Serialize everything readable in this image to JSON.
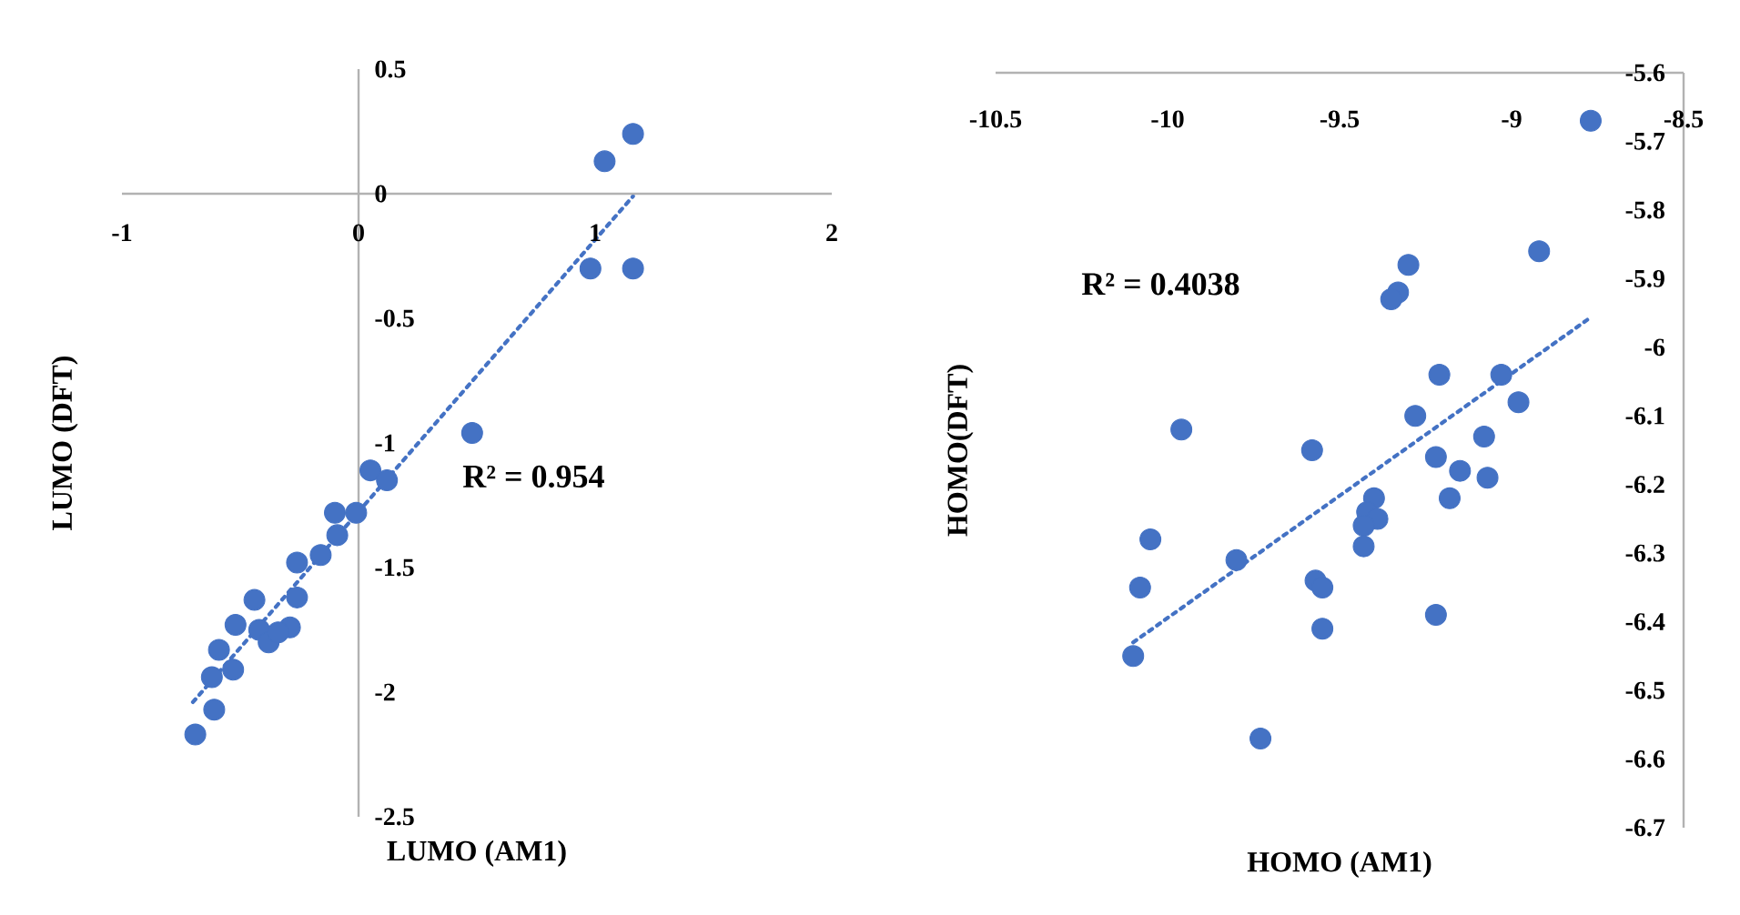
{
  "chart_data": [
    {
      "type": "scatter",
      "xlabel": "LUMO (AM1)",
      "ylabel": "LUMO (DFT)",
      "xlim": [
        -1,
        2
      ],
      "ylim": [
        -2.5,
        0.5
      ],
      "xticks": [
        -1,
        0,
        1,
        2
      ],
      "yticks": [
        -2.5,
        -2,
        -1.5,
        -1,
        -0.5,
        0,
        0.5
      ],
      "annotations": [
        "R² = 0.954"
      ],
      "series": [
        {
          "type": "scatter",
          "marker": "circle",
          "color": "#4472c4",
          "x": [
            1.16,
            1.04,
            0.98,
            1.16,
            0.48,
            0.05,
            0.12,
            -0.1,
            -0.01,
            -0.09,
            -0.16,
            -0.26,
            -0.26,
            -0.44,
            -0.52,
            -0.42,
            -0.38,
            -0.29,
            -0.34,
            -0.59,
            -0.53,
            -0.62,
            -0.61,
            -0.69
          ],
          "values": [
            0.24,
            0.13,
            -0.3,
            -0.3,
            -0.96,
            -1.11,
            -1.15,
            -1.28,
            -1.28,
            -1.37,
            -1.45,
            -1.48,
            -1.62,
            -1.63,
            -1.73,
            -1.75,
            -1.8,
            -1.74,
            -1.76,
            -1.83,
            -1.91,
            -1.94,
            -2.07,
            -2.17
          ]
        },
        {
          "type": "line",
          "marker": "none",
          "line_style": "dotted",
          "color": "#4472c4",
          "x": [
            -0.7,
            1.16
          ],
          "values": [
            -2.04,
            -0.01
          ]
        }
      ]
    },
    {
      "type": "scatter",
      "xlabel": "HOMO (AM1)",
      "ylabel": "HOMO(DFT)",
      "xlim": [
        -10.5,
        -8.5
      ],
      "ylim": [
        -6.7,
        -5.6
      ],
      "xticks": [
        -10.5,
        -10,
        -9.5,
        -9,
        -8.5
      ],
      "yticks": [
        -6.7,
        -6.6,
        -6.5,
        -6.4,
        -6.3,
        -6.2,
        -6.1,
        -6,
        -5.9,
        -5.8,
        -5.7,
        -5.6
      ],
      "annotations": [
        "R² = 0.4038"
      ],
      "series": [
        {
          "type": "scatter",
          "marker": "circle",
          "color": "#4472c4",
          "x": [
            -8.77,
            -8.92,
            -9.3,
            -9.33,
            -9.35,
            -9.21,
            -9.03,
            -8.98,
            -9.28,
            -9.96,
            -9.58,
            -9.08,
            -9.22,
            -9.15,
            -9.07,
            -9.18,
            -9.4,
            -9.42,
            -9.39,
            -9.43,
            -9.43,
            -10.05,
            -9.8,
            -10.08,
            -9.57,
            -9.55,
            -9.55,
            -9.22,
            -10.1,
            -9.73
          ],
          "values": [
            -5.67,
            -5.86,
            -5.88,
            -5.92,
            -5.93,
            -6.04,
            -6.04,
            -6.08,
            -6.1,
            -6.12,
            -6.15,
            -6.13,
            -6.16,
            -6.18,
            -6.19,
            -6.22,
            -6.22,
            -6.24,
            -6.25,
            -6.26,
            -6.29,
            -6.28,
            -6.31,
            -6.35,
            -6.34,
            -6.35,
            -6.41,
            -6.39,
            -6.45,
            -6.57
          ]
        },
        {
          "type": "line",
          "marker": "none",
          "line_style": "dotted",
          "color": "#4472c4",
          "x": [
            -10.1,
            -8.78
          ],
          "values": [
            -6.43,
            -5.96
          ]
        }
      ]
    }
  ]
}
